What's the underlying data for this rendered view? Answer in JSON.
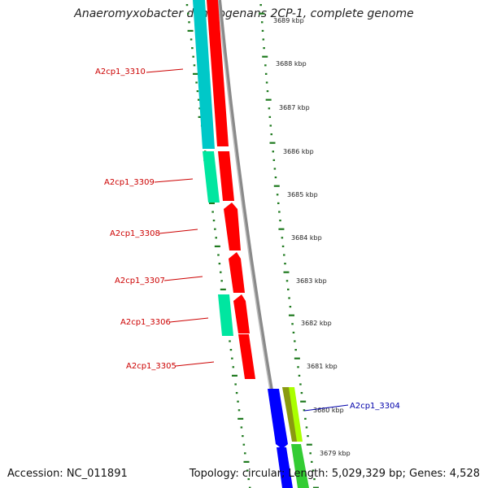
{
  "title": "Anaeromyxobacter dehalogenans 2CP-1, complete genome",
  "footer": {
    "accession": "Accession: NC_011891",
    "topology": "Topology: circular; Length: 5,029,329 bp; Genes: 4,528"
  },
  "scale_labels": [
    "3689 kbp",
    "3688 kbp",
    "3687 kbp",
    "3686 kbp",
    "3685 kbp",
    "3684 kbp",
    "3683 kbp",
    "3682 kbp",
    "3681 kbp",
    "3680 kbp",
    "3679 kbp"
  ],
  "gene_labels": [
    {
      "text": "A2cp1_3310",
      "color": "#cc0000"
    },
    {
      "text": "A2cp1_3309",
      "color": "#cc0000"
    },
    {
      "text": "A2cp1_3308",
      "color": "#cc0000"
    },
    {
      "text": "A2cp1_3307",
      "color": "#cc0000"
    },
    {
      "text": "A2cp1_3306",
      "color": "#cc0000"
    },
    {
      "text": "A2cp1_3305",
      "color": "#cc0000"
    },
    {
      "text": "A2cp1_3304",
      "color": "#0000aa"
    }
  ],
  "colors": {
    "backbone": "#8a8a8a",
    "ticks": "#1f7a1f",
    "red_gene": "#ff0000",
    "cyan_gene": "#00c8c8",
    "teal_gene": "#00e6a0",
    "blue_gene": "#0000ff",
    "green_gene": "#33cc33",
    "olive_gene": "#8a9a10",
    "lime_gene": "#aaff00"
  }
}
